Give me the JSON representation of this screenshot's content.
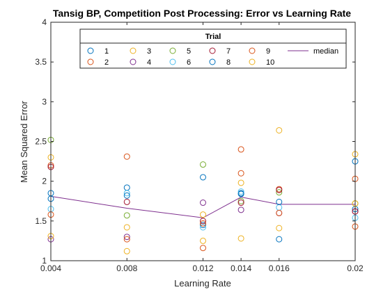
{
  "chart_data": {
    "type": "scatter",
    "title": "Tansig BP, Competition Post Processing: Error vs Learning Rate",
    "xlabel": "Learning Rate",
    "ylabel": "Mean Squared Error",
    "xlim": [
      0.004,
      0.02
    ],
    "ylim": [
      1,
      4
    ],
    "xticks": [
      0.004,
      0.008,
      0.012,
      0.014,
      0.016,
      0.02
    ],
    "xtick_labels": [
      "0.004",
      "0.008",
      "0.012",
      "0.014",
      "0.016",
      "0.02"
    ],
    "yticks": [
      1,
      1.5,
      2,
      2.5,
      3,
      3.5,
      4
    ],
    "ytick_labels": [
      "1",
      "1.5",
      "2",
      "2.5",
      "3",
      "3.5",
      "4"
    ],
    "grid": false,
    "legend": {
      "title": "Trial",
      "placement": "top"
    },
    "x": [
      0.004,
      0.008,
      0.012,
      0.014,
      0.016,
      0.02
    ],
    "series": [
      {
        "name": "1",
        "marker": "circle",
        "color": "#0072BD",
        "values": [
          1.85,
          1.92,
          1.45,
          1.85,
          1.27,
          1.65
        ]
      },
      {
        "name": "2",
        "marker": "circle",
        "color": "#D95319",
        "values": [
          2.2,
          2.31,
          1.16,
          2.1,
          1.9,
          2.03
        ]
      },
      {
        "name": "3",
        "marker": "circle",
        "color": "#EDB120",
        "values": [
          2.3,
          1.42,
          1.25,
          1.28,
          1.41,
          2.34
        ]
      },
      {
        "name": "4",
        "marker": "circle",
        "color": "#7E2F8E",
        "values": [
          1.27,
          1.3,
          1.73,
          1.64,
          1.6,
          1.62
        ]
      },
      {
        "name": "5",
        "marker": "circle",
        "color": "#77AC30",
        "values": [
          2.52,
          1.57,
          2.21,
          1.75,
          1.86,
          1.72
        ]
      },
      {
        "name": "6",
        "marker": "circle",
        "color": "#4DBEEE",
        "values": [
          1.65,
          1.85,
          1.42,
          1.87,
          1.67,
          1.54
        ]
      },
      {
        "name": "7",
        "marker": "circle",
        "color": "#A2142F",
        "values": [
          2.18,
          1.74,
          1.5,
          1.73,
          1.89,
          1.62
        ]
      },
      {
        "name": "8",
        "marker": "circle",
        "color": "#0072BD",
        "values": [
          1.78,
          1.82,
          2.05,
          1.84,
          1.74,
          2.25
        ]
      },
      {
        "name": "9",
        "marker": "circle",
        "color": "#D95319",
        "values": [
          1.58,
          1.27,
          1.47,
          2.4,
          1.6,
          1.43
        ]
      },
      {
        "name": "10",
        "marker": "circle",
        "color": "#EDB120",
        "values": [
          1.31,
          1.12,
          1.58,
          1.98,
          2.64,
          1.72
        ]
      },
      {
        "name": "median",
        "marker": "line",
        "color": "#7E2F8E",
        "values": [
          1.81,
          1.66,
          1.54,
          1.8,
          1.71,
          1.71
        ]
      }
    ]
  }
}
